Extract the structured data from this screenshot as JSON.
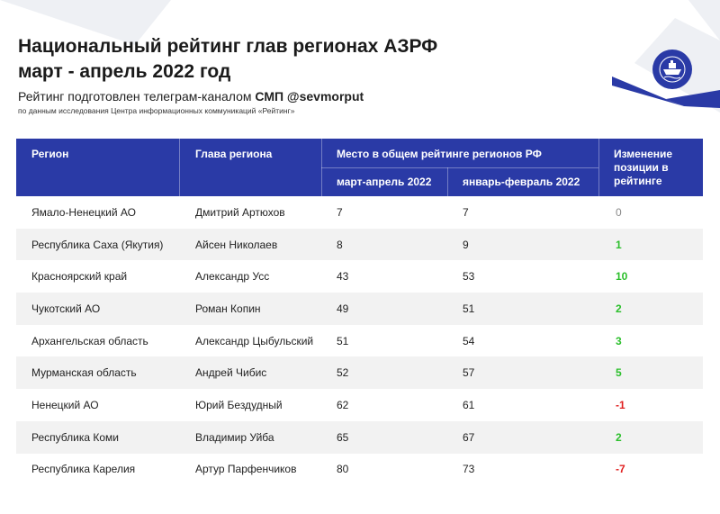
{
  "title_line1": "Национальный рейтинг глав регионах АЗРФ",
  "title_line2": "март - апрель 2022 год",
  "subtitle_prefix": "Рейтинг подготовлен телеграм-каналом ",
  "subtitle_bold": "СМП @sevmorput",
  "subnote": "по данным исследования Центра информационных коммуникаций «Рейтинг»",
  "colors": {
    "header_bg": "#2a3aa6",
    "positive": "#2bbf2b",
    "negative": "#e02020",
    "zero": "#888888",
    "alt_row": "#f2f2f2"
  },
  "logo_icon": "icebreaker-ship-icon",
  "table": {
    "headers": {
      "region": "Регион",
      "head": "Глава региона",
      "rank_group": "Место в общем рейтинге регионов РФ",
      "rank_current": "март-апрель 2022",
      "rank_previous": "январь-февраль 2022",
      "change_line1": "Изменение",
      "change_line2": "позиции в",
      "change_line3": "рейтинге"
    },
    "rows": [
      {
        "region": "Ямало-Ненецкий АО",
        "head": "Дмитрий Артюхов",
        "current": "7",
        "previous": "7",
        "change": "0",
        "trend": "zero"
      },
      {
        "region": "Республика Саха (Якутия)",
        "head": "Айсен Николаев",
        "current": "8",
        "previous": "9",
        "change": "1",
        "trend": "pos"
      },
      {
        "region": "Красноярский край",
        "head": "Александр Усс",
        "current": "43",
        "previous": "53",
        "change": "10",
        "trend": "pos"
      },
      {
        "region": "Чукотский АО",
        "head": "Роман Копин",
        "current": "49",
        "previous": "51",
        "change": "2",
        "trend": "pos"
      },
      {
        "region": "Архангельская область",
        "head": "Александр Цыбульский",
        "current": "51",
        "previous": "54",
        "change": "3",
        "trend": "pos"
      },
      {
        "region": "Мурманская область",
        "head": "Андрей Чибис",
        "current": "52",
        "previous": "57",
        "change": "5",
        "trend": "pos"
      },
      {
        "region": "Ненецкий АО",
        "head": "Юрий Бездудный",
        "current": "62",
        "previous": "61",
        "change": "-1",
        "trend": "neg"
      },
      {
        "region": "Республика Коми",
        "head": "Владимир Уйба",
        "current": "65",
        "previous": "67",
        "change": "2",
        "trend": "pos"
      },
      {
        "region": "Республика Карелия",
        "head": "Артур Парфенчиков",
        "current": "80",
        "previous": "73",
        "change": "-7",
        "trend": "neg"
      }
    ]
  }
}
